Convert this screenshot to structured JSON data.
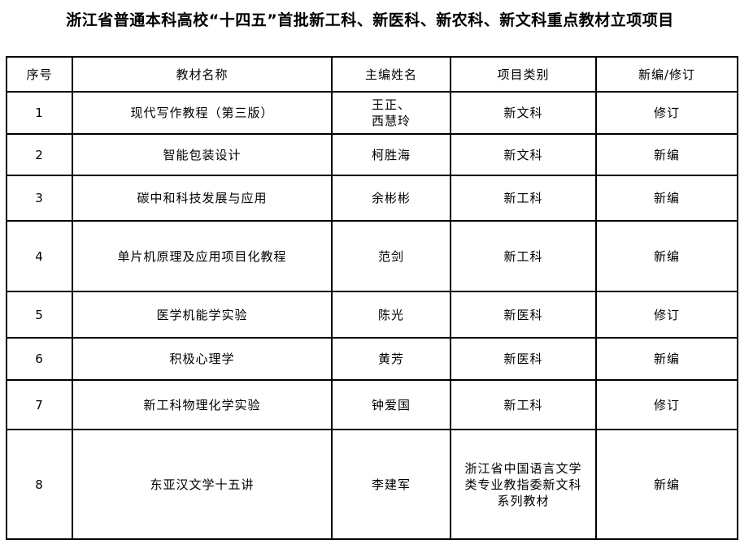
{
  "title": "浙江省普通本科高校“十四五”首批新工科、新医科、新农科、新文科重点教材立项项目",
  "headers": [
    "序号",
    "教材名称",
    "主编姓名",
    "项目类别",
    "新编/修订"
  ],
  "rows": [
    [
      "1",
      "现代写作教程（第三版）",
      "王正、\n西慧玲",
      "新文科",
      "修订"
    ],
    [
      "2",
      "智能包装设计",
      "柯胜海",
      "新文科",
      "新编"
    ],
    [
      "3",
      "碳中和科技发展与应用",
      "余彬彬",
      "新工科",
      "新编"
    ],
    [
      "4",
      "单片机原理及应用项目化教程",
      "范剑",
      "新工科",
      "新编"
    ],
    [
      "5",
      "医学机能学实验",
      "陈光",
      "新医科",
      "修订"
    ],
    [
      "6",
      "积极心理学",
      "黄芳",
      "新医科",
      "新编"
    ],
    [
      "7",
      "新工科物理化学实验",
      "钟爱国",
      "新工科",
      "修订"
    ],
    [
      "8",
      "东亚汉文学十五讲",
      "李建军",
      "浙江省中国语言文学类专业教指委新文科系列教材",
      "新编"
    ]
  ]
}
